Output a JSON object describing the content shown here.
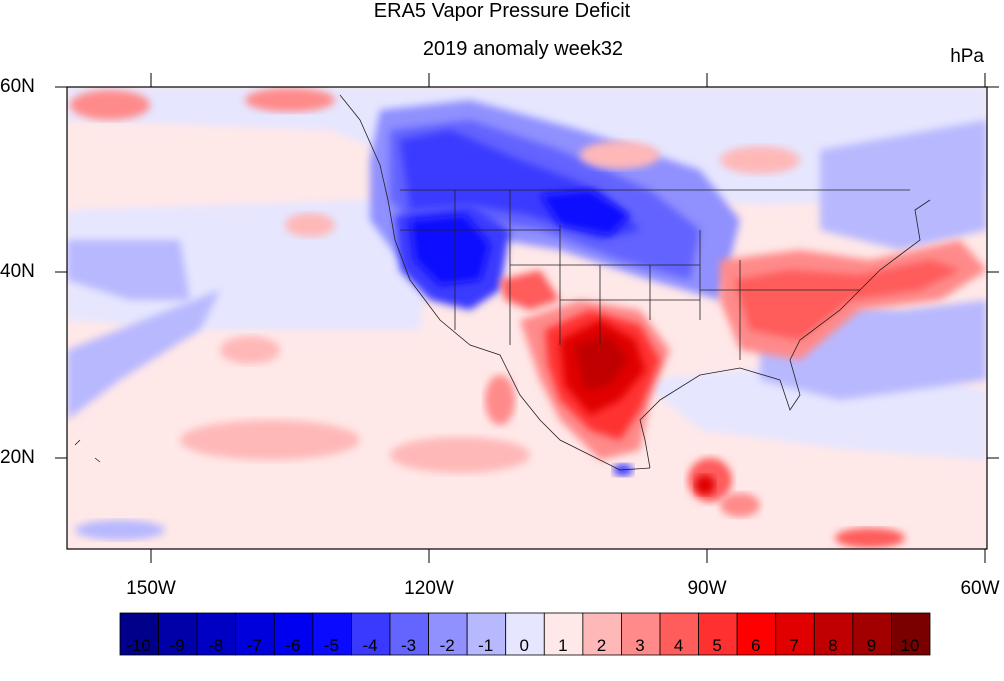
{
  "title": "ERA5 Vapor Pressure Deficit",
  "subtitle": "2019 anomaly week32",
  "units": "hPa",
  "map": {
    "projection": "cylindrical equidistant",
    "lon_range": [
      -159,
      -60
    ],
    "lat_range": [
      10,
      60
    ],
    "lat_labels": [
      "60N",
      "40N",
      "20N"
    ],
    "lon_labels": [
      "150W",
      "120W",
      "90W",
      "60W"
    ],
    "coastlines": true,
    "state_boundaries": true
  },
  "colorbar": {
    "labels": [
      "-10",
      "-9",
      "-8",
      "-7",
      "-6",
      "-5",
      "-4",
      "-3",
      "-2",
      "-1",
      "0",
      "1",
      "2",
      "3",
      "4",
      "5",
      "6",
      "7",
      "8",
      "9",
      "10"
    ],
    "colors": [
      "#00008a",
      "#0000a8",
      "#0000c4",
      "#0000dc",
      "#0000f0",
      "#0a0aff",
      "#3a3aff",
      "#6464ff",
      "#9090ff",
      "#b8b8ff",
      "#e6e6ff",
      "#ffe8e8",
      "#ffb8b8",
      "#ff8a8a",
      "#ff5c5c",
      "#ff3030",
      "#ff0000",
      "#e00000",
      "#c00000",
      "#a20000",
      "#7a0000"
    ]
  }
}
